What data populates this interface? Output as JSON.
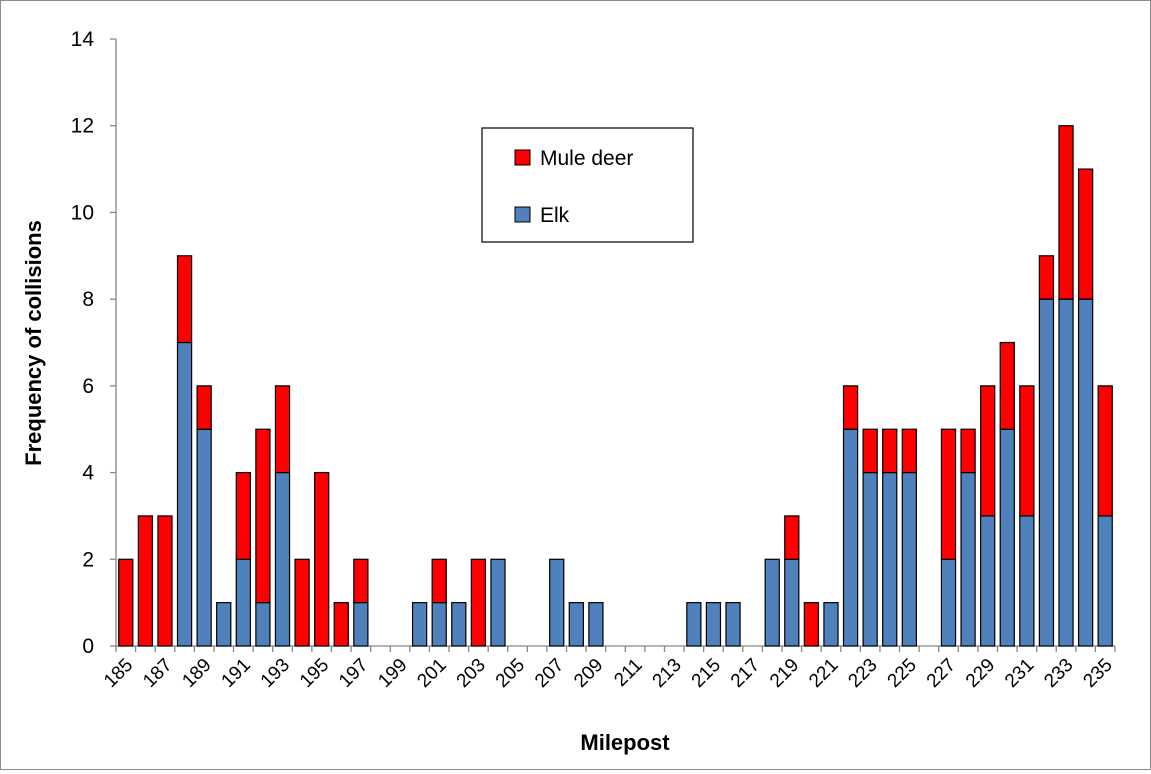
{
  "chart_data": {
    "type": "bar",
    "stacked": true,
    "title": "",
    "xlabel": "Milepost",
    "ylabel": "Frequency of collisions",
    "ylim": [
      0,
      14
    ],
    "yticks": [
      0,
      2,
      4,
      6,
      8,
      10,
      12,
      14
    ],
    "grid": false,
    "legend_position": "top-center",
    "categories": [
      "185",
      "186",
      "187",
      "188",
      "189",
      "190",
      "191",
      "192",
      "193",
      "194",
      "195",
      "196",
      "197",
      "198",
      "199",
      "200",
      "201",
      "202",
      "203",
      "204",
      "205",
      "206",
      "207",
      "208",
      "209",
      "210",
      "211",
      "212",
      "213",
      "214",
      "215",
      "216",
      "217",
      "218",
      "219",
      "220",
      "221",
      "222",
      "223",
      "224",
      "225",
      "226",
      "227",
      "228",
      "229",
      "230",
      "231",
      "232",
      "233",
      "234",
      "235"
    ],
    "x_tick_labels": [
      "185",
      "187",
      "189",
      "191",
      "193",
      "195",
      "197",
      "199",
      "201",
      "203",
      "205",
      "207",
      "209",
      "211",
      "213",
      "215",
      "217",
      "219",
      "221",
      "223",
      "225",
      "227",
      "229",
      "231",
      "233",
      "235"
    ],
    "series": [
      {
        "name": "Elk",
        "color": "#4f81bd",
        "values": [
          0,
          0,
          0,
          7,
          5,
          1,
          2,
          1,
          4,
          0,
          0,
          0,
          1,
          0,
          0,
          1,
          1,
          1,
          0,
          2,
          0,
          0,
          2,
          1,
          1,
          0,
          0,
          0,
          0,
          1,
          1,
          1,
          0,
          2,
          2,
          0,
          1,
          5,
          4,
          4,
          4,
          0,
          2,
          4,
          3,
          5,
          3,
          8,
          8,
          8,
          3
        ]
      },
      {
        "name": "Mule deer",
        "color": "#ff0000",
        "values": [
          2,
          3,
          3,
          2,
          1,
          0,
          2,
          4,
          2,
          2,
          4,
          1,
          1,
          0,
          0,
          0,
          1,
          0,
          2,
          0,
          0,
          0,
          0,
          0,
          0,
          0,
          0,
          0,
          0,
          0,
          0,
          0,
          0,
          0,
          1,
          1,
          0,
          1,
          1,
          1,
          1,
          0,
          3,
          1,
          3,
          2,
          3,
          1,
          4,
          3,
          3
        ]
      }
    ],
    "legend_order": [
      "Mule deer",
      "Elk"
    ]
  }
}
